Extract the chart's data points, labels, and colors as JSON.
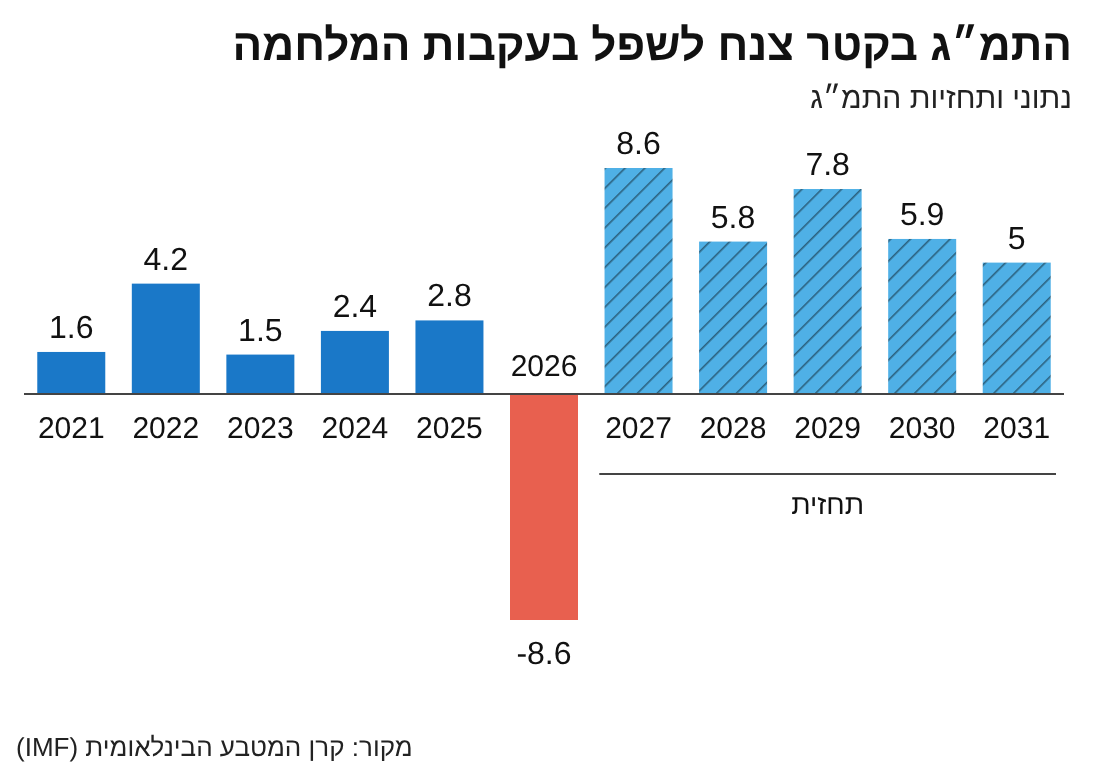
{
  "chart_data": {
    "type": "bar",
    "title": "התמ״ג בקטר צנח לשפל בעקבות המלחמה",
    "subtitle": "נתוני ותחזיות התמ״ג",
    "categories": [
      "2021",
      "2022",
      "2023",
      "2024",
      "2025",
      "2026",
      "2027",
      "2028",
      "2029",
      "2030",
      "2031"
    ],
    "series": [
      {
        "colors": [
          "#1a78c8",
          "#1a78c8",
          "#1a78c8",
          "#1a78c8",
          "#1a78c8",
          "#e8604f",
          null,
          null,
          null,
          null,
          null
        ],
        "values": [
          1.6,
          4.2,
          1.5,
          2.4,
          2.8,
          -8.6,
          null,
          null,
          null,
          null,
          null
        ]
      },
      {
        "name": "תחזית",
        "color": "#4fb0e6",
        "values": [
          null,
          null,
          null,
          null,
          null,
          null,
          8.6,
          5.8,
          7.8,
          5.9,
          5
        ]
      }
    ],
    "data_labels": true,
    "annotations": [
      "מקור: קרן המטבע הבינלאומית (IMF)"
    ]
  }
}
